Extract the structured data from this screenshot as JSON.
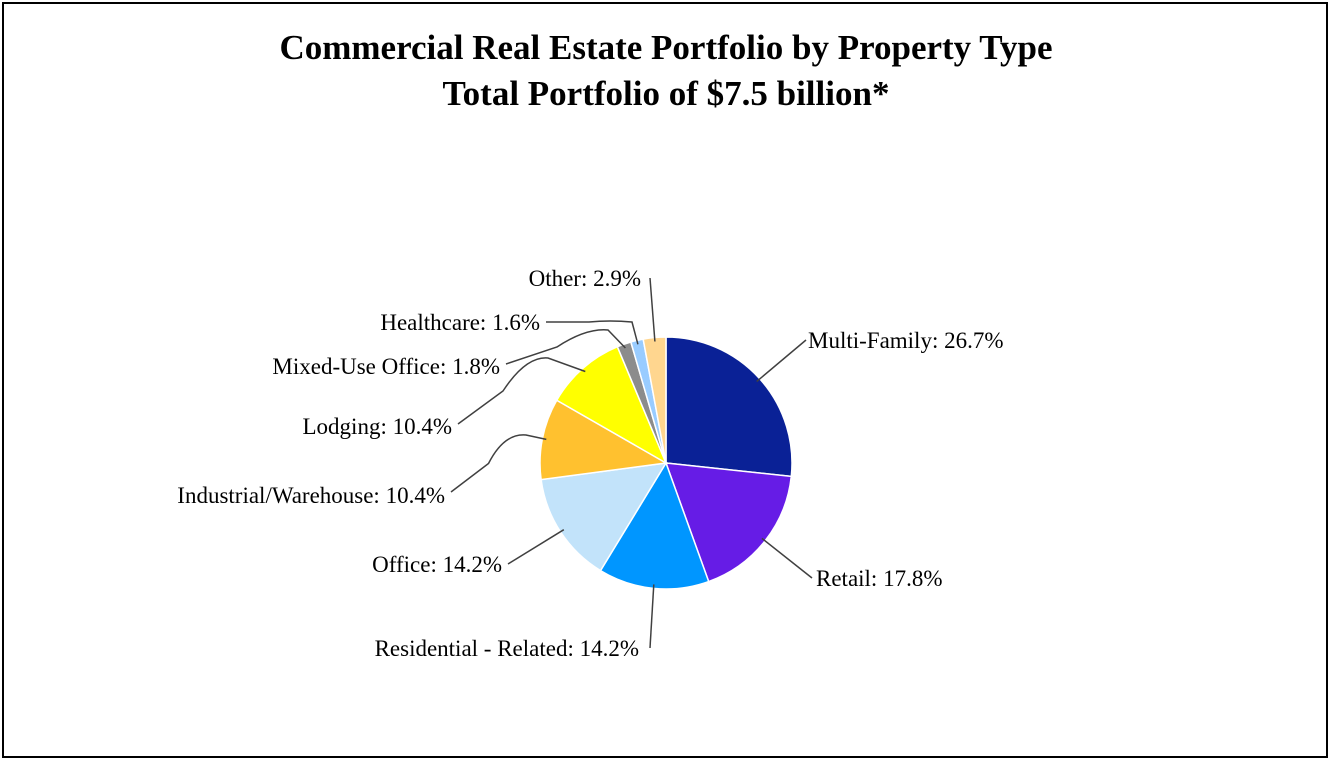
{
  "chart_data": {
    "type": "pie",
    "title": "Commercial Real Estate Portfolio by Property Type",
    "subtitle": "Total Portfolio of $7.5 billion*",
    "slices": [
      {
        "label": "Multi-Family",
        "value": 26.7,
        "text": "Multi-Family: 26.7%",
        "color": "#0A2196"
      },
      {
        "label": "Retail",
        "value": 17.8,
        "text": "Retail: 17.8%",
        "color": "#661CE6"
      },
      {
        "label": "Residential - Related",
        "value": 14.2,
        "text": "Residential - Related: 14.2%",
        "color": "#0096FF"
      },
      {
        "label": "Office",
        "value": 14.2,
        "text": "Office: 14.2%",
        "color": "#C2E3FA"
      },
      {
        "label": "Industrial/Warehouse",
        "value": 10.4,
        "text": "Industrial/Warehouse: 10.4%",
        "color": "#FFC12F"
      },
      {
        "label": "Lodging",
        "value": 10.4,
        "text": "Lodging: 10.4%",
        "color": "#FFFF00"
      },
      {
        "label": "Mixed-Use Office",
        "value": 1.8,
        "text": "Mixed-Use Office: 1.8%",
        "color": "#8C8C8C"
      },
      {
        "label": "Healthcare",
        "value": 1.6,
        "text": "Healthcare: 1.6%",
        "color": "#99CCFF"
      },
      {
        "label": "Other",
        "value": 2.9,
        "text": "Other: 2.9%",
        "color": "#FFD68F"
      }
    ],
    "leader_color": "#404040"
  }
}
